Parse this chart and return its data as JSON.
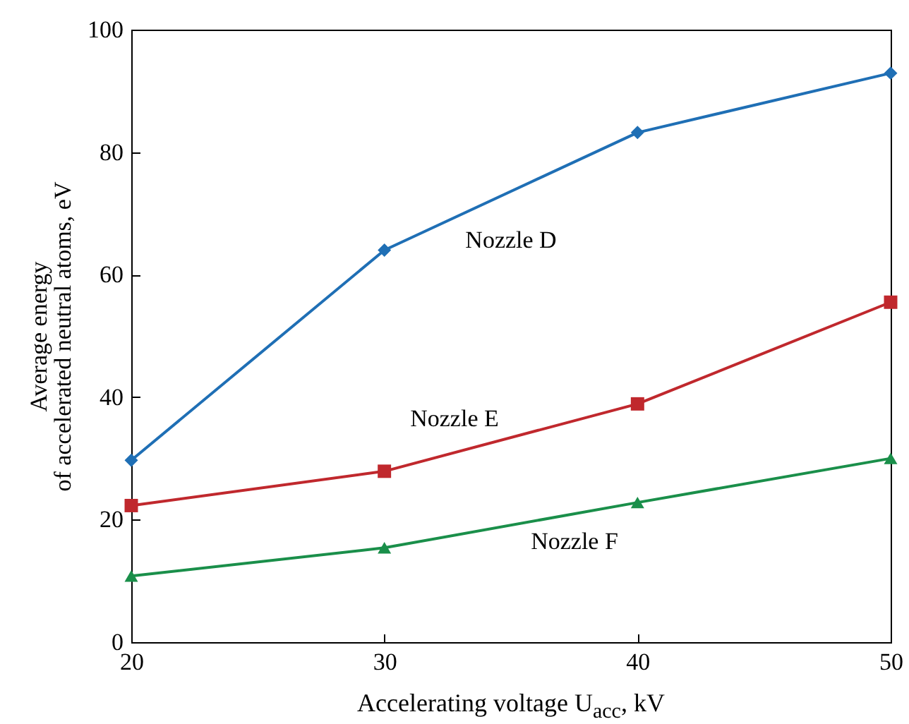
{
  "chart_data": {
    "type": "line",
    "xlabel": "Accelerating voltage U$_{acc}$, kV",
    "ylabel": "Average energy\nof accelerated neutral atoms, eV",
    "x": [
      20,
      30,
      40,
      50
    ],
    "xlim": [
      20,
      50
    ],
    "xticks": [
      20,
      30,
      40,
      50
    ],
    "ylim": [
      0,
      100
    ],
    "yticks": [
      0,
      20,
      40,
      60,
      80,
      100
    ],
    "grid": false,
    "series": [
      {
        "name": "Nozzle D",
        "color": "#1f6fb5",
        "marker": "diamond",
        "values": [
          29.7,
          64,
          83.2,
          92.9
        ]
      },
      {
        "name": "Nozzle E",
        "color": "#c0282d",
        "marker": "square",
        "values": [
          22.3,
          27.9,
          38.9,
          55.5
        ]
      },
      {
        "name": "Nozzle F",
        "color": "#1a8f4a",
        "marker": "triangle",
        "values": [
          10.8,
          15.4,
          22.8,
          30
        ]
      }
    ]
  }
}
